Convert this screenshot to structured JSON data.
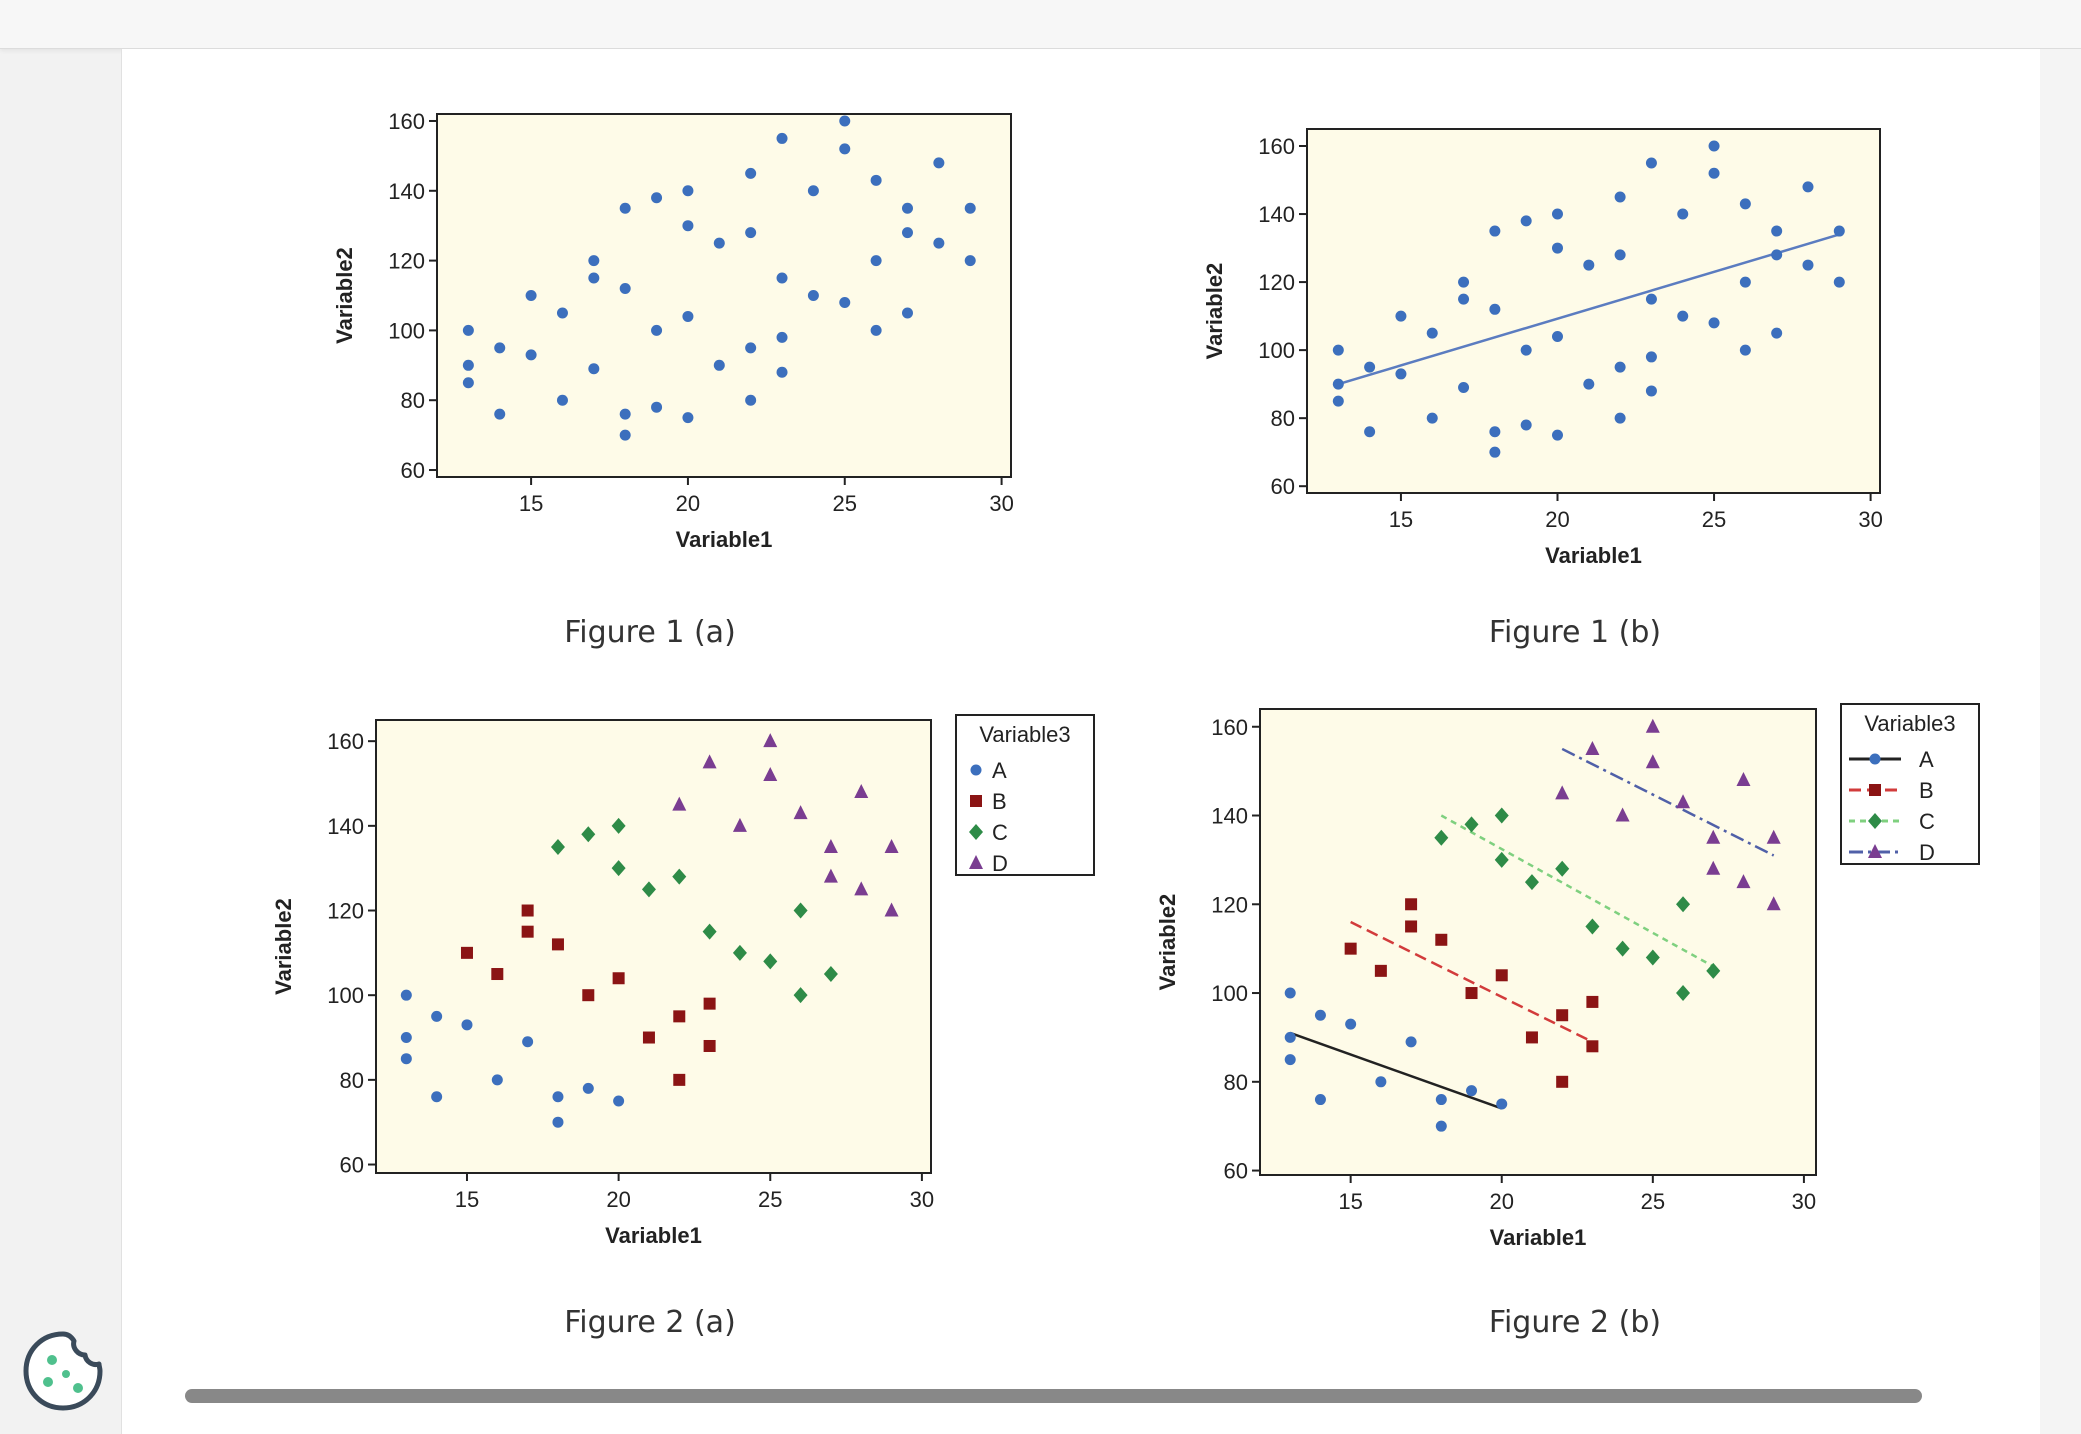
{
  "captions": [
    "Figure 1 (a)",
    "Figure 1 (b)",
    "Figure 2 (a)",
    "Figure 2 (b)"
  ],
  "cookie_icon": "cookie-icon",
  "colors": {
    "plot_bg": "#fefbe8",
    "A": "#3c6fbd",
    "B": "#8b1414",
    "C": "#2e8b47",
    "D": "#7a3d91",
    "line_A": "#222222",
    "line_B": "#d23b3b",
    "line_C": "#7fd07f",
    "line_D": "#5060a8",
    "fit": "#5b7cc0",
    "scroll_thumb": "#888888",
    "cookie": "#3a4a5a",
    "cookie_dots": "#4fc08d"
  },
  "chart_data": [
    {
      "type": "scatter",
      "xlabel": "Variable1",
      "ylabel": "Variable2",
      "xlim": [
        12,
        30.3
      ],
      "ylim": [
        58,
        162
      ],
      "xticks": [
        15,
        20,
        25,
        30
      ],
      "yticks": [
        60,
        80,
        100,
        120,
        140,
        160
      ],
      "grouped": false,
      "fit_line": false
    },
    {
      "type": "scatter",
      "xlabel": "Variable1",
      "ylabel": "Variable2",
      "xlim": [
        12,
        30.3
      ],
      "ylim": [
        58,
        165
      ],
      "xticks": [
        15,
        20,
        25,
        30
      ],
      "yticks": [
        60,
        80,
        100,
        120,
        140,
        160
      ],
      "grouped": false,
      "fit_line": true,
      "fit": {
        "x": [
          13,
          29
        ],
        "y": [
          90,
          134
        ]
      }
    },
    {
      "type": "scatter",
      "xlabel": "Variable1",
      "ylabel": "Variable2",
      "xlim": [
        12,
        30.3
      ],
      "ylim": [
        58,
        165
      ],
      "xticks": [
        15,
        20,
        25,
        30
      ],
      "yticks": [
        60,
        80,
        100,
        120,
        140,
        160
      ],
      "grouped": true,
      "fit_line": false,
      "legend": {
        "title": "Variable3",
        "items": [
          "A",
          "B",
          "C",
          "D"
        ],
        "placement": "outside-right"
      }
    },
    {
      "type": "scatter",
      "xlabel": "Variable1",
      "ylabel": "Variable2",
      "xlim": [
        12,
        30.4
      ],
      "ylim": [
        59,
        164
      ],
      "xticks": [
        15,
        20,
        25,
        30
      ],
      "yticks": [
        60,
        80,
        100,
        120,
        140,
        160
      ],
      "grouped": true,
      "fit_line": true,
      "group_fits": [
        {
          "group": "A",
          "x": [
            13,
            20
          ],
          "y": [
            91,
            74
          ]
        },
        {
          "group": "B",
          "x": [
            15,
            23
          ],
          "y": [
            116,
            89
          ]
        },
        {
          "group": "C",
          "x": [
            18,
            27
          ],
          "y": [
            140,
            106
          ]
        },
        {
          "group": "D",
          "x": [
            22,
            29
          ],
          "y": [
            155,
            131
          ]
        }
      ],
      "legend": {
        "title": "Variable3",
        "items": [
          "A",
          "B",
          "C",
          "D"
        ],
        "placement": "outside-right"
      }
    }
  ],
  "points": [
    {
      "g": "A",
      "x": 13,
      "y": 100
    },
    {
      "g": "A",
      "x": 13,
      "y": 90
    },
    {
      "g": "A",
      "x": 13,
      "y": 85
    },
    {
      "g": "A",
      "x": 14,
      "y": 95
    },
    {
      "g": "A",
      "x": 14,
      "y": 76
    },
    {
      "g": "A",
      "x": 15,
      "y": 93
    },
    {
      "g": "A",
      "x": 16,
      "y": 80
    },
    {
      "g": "A",
      "x": 17,
      "y": 89
    },
    {
      "g": "A",
      "x": 18,
      "y": 76
    },
    {
      "g": "A",
      "x": 18,
      "y": 70
    },
    {
      "g": "A",
      "x": 19,
      "y": 78
    },
    {
      "g": "A",
      "x": 20,
      "y": 75
    },
    {
      "g": "B",
      "x": 15,
      "y": 110
    },
    {
      "g": "B",
      "x": 16,
      "y": 105
    },
    {
      "g": "B",
      "x": 17,
      "y": 120
    },
    {
      "g": "B",
      "x": 17,
      "y": 115
    },
    {
      "g": "B",
      "x": 18,
      "y": 112
    },
    {
      "g": "B",
      "x": 19,
      "y": 100
    },
    {
      "g": "B",
      "x": 20,
      "y": 104
    },
    {
      "g": "B",
      "x": 21,
      "y": 90
    },
    {
      "g": "B",
      "x": 22,
      "y": 95
    },
    {
      "g": "B",
      "x": 22,
      "y": 80
    },
    {
      "g": "B",
      "x": 23,
      "y": 98
    },
    {
      "g": "B",
      "x": 23,
      "y": 88
    },
    {
      "g": "C",
      "x": 18,
      "y": 135
    },
    {
      "g": "C",
      "x": 19,
      "y": 138
    },
    {
      "g": "C",
      "x": 20,
      "y": 140
    },
    {
      "g": "C",
      "x": 20,
      "y": 130
    },
    {
      "g": "C",
      "x": 21,
      "y": 125
    },
    {
      "g": "C",
      "x": 22,
      "y": 128
    },
    {
      "g": "C",
      "x": 23,
      "y": 115
    },
    {
      "g": "C",
      "x": 24,
      "y": 110
    },
    {
      "g": "C",
      "x": 25,
      "y": 108
    },
    {
      "g": "C",
      "x": 26,
      "y": 120
    },
    {
      "g": "C",
      "x": 26,
      "y": 100
    },
    {
      "g": "C",
      "x": 27,
      "y": 105
    },
    {
      "g": "D",
      "x": 22,
      "y": 145
    },
    {
      "g": "D",
      "x": 23,
      "y": 155
    },
    {
      "g": "D",
      "x": 24,
      "y": 140
    },
    {
      "g": "D",
      "x": 25,
      "y": 160
    },
    {
      "g": "D",
      "x": 25,
      "y": 152
    },
    {
      "g": "D",
      "x": 26,
      "y": 143
    },
    {
      "g": "D",
      "x": 27,
      "y": 135
    },
    {
      "g": "D",
      "x": 27,
      "y": 128
    },
    {
      "g": "D",
      "x": 28,
      "y": 148
    },
    {
      "g": "D",
      "x": 28,
      "y": 125
    },
    {
      "g": "D",
      "x": 29,
      "y": 135
    },
    {
      "g": "D",
      "x": 29,
      "y": 120
    }
  ]
}
